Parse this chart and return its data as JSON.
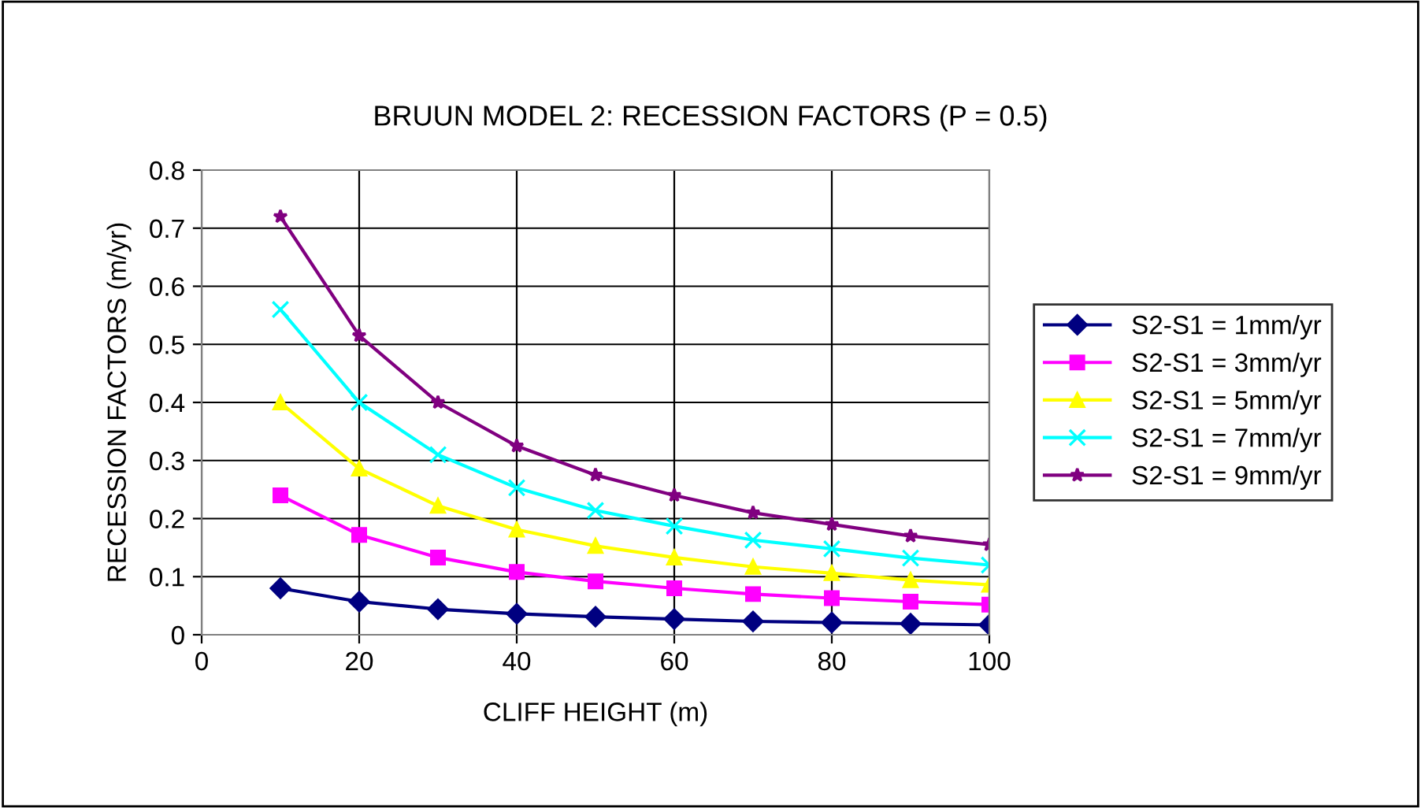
{
  "chart_data": {
    "type": "line",
    "title": "BRUUN MODEL 2: RECESSION FACTORS (P = 0.5)",
    "xlabel": "CLIFF HEIGHT (m)",
    "ylabel": "RECESSION FACTORS (m/yr)",
    "x": [
      10,
      20,
      30,
      40,
      50,
      60,
      70,
      80,
      90,
      100
    ],
    "series": [
      {
        "name": "S2-S1 = 1mm/yr",
        "color": "#000080",
        "marker": "diamond",
        "values": [
          0.08,
          0.057,
          0.044,
          0.036,
          0.031,
          0.027,
          0.023,
          0.021,
          0.019,
          0.017
        ]
      },
      {
        "name": "S2-S1 = 3mm/yr",
        "color": "#ff00ff",
        "marker": "square",
        "values": [
          0.24,
          0.172,
          0.133,
          0.108,
          0.092,
          0.08,
          0.07,
          0.063,
          0.057,
          0.052
        ]
      },
      {
        "name": "S2-S1 = 5mm/yr",
        "color": "#ffff00",
        "marker": "triangle",
        "values": [
          0.4,
          0.286,
          0.222,
          0.181,
          0.153,
          0.133,
          0.117,
          0.106,
          0.094,
          0.086
        ]
      },
      {
        "name": "S2-S1 = 7mm/yr",
        "color": "#00ffff",
        "marker": "cross",
        "values": [
          0.56,
          0.4,
          0.31,
          0.253,
          0.214,
          0.187,
          0.163,
          0.148,
          0.132,
          0.12
        ]
      },
      {
        "name": "S2-S1 = 9mm/yr",
        "color": "#800080",
        "marker": "star",
        "values": [
          0.72,
          0.515,
          0.4,
          0.325,
          0.275,
          0.24,
          0.21,
          0.19,
          0.17,
          0.155
        ]
      }
    ],
    "xlim": [
      0,
      100
    ],
    "xticks": [
      0,
      20,
      40,
      60,
      80,
      100
    ],
    "ylim": [
      0,
      0.8
    ],
    "yticks": [
      0,
      0.1,
      0.2,
      0.3,
      0.4,
      0.5,
      0.6,
      0.7,
      0.8
    ],
    "grid": true,
    "legend": "right",
    "line_style": "solid"
  }
}
